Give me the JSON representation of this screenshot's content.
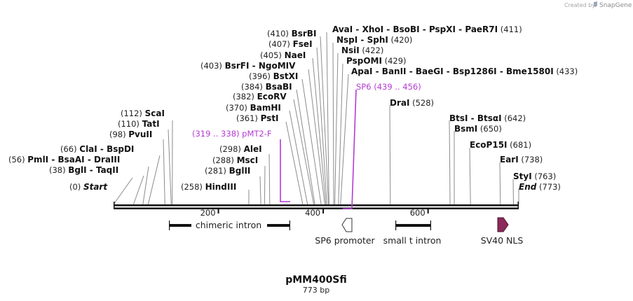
{
  "credit": {
    "prefix": "Created by",
    "brand": "SnapGene"
  },
  "map": {
    "name": "pMM400Sfi",
    "length_label": "773 bp",
    "length": 773
  },
  "ticks": [
    "200",
    "400",
    "600"
  ],
  "sites": [
    {
      "label_pos": "(0)",
      "names": [
        "Start"
      ],
      "italic": true
    },
    {
      "label_pos": "(38)",
      "names": [
        "BglI",
        "TaqII"
      ]
    },
    {
      "label_pos": "(56)",
      "names": [
        "PmlI",
        "BsaAI",
        "DraIII"
      ]
    },
    {
      "label_pos": "(66)",
      "names": [
        "ClaI",
        "BspDI"
      ]
    },
    {
      "label_pos": "(98)",
      "names": [
        "PvuII"
      ]
    },
    {
      "label_pos": "(110)",
      "names": [
        "TatI"
      ]
    },
    {
      "label_pos": "(112)",
      "names": [
        "ScaI"
      ]
    },
    {
      "label_pos": "(258)",
      "names": [
        "HindIII"
      ]
    },
    {
      "label_pos": "(281)",
      "names": [
        "BglII"
      ]
    },
    {
      "label_pos": "(288)",
      "names": [
        "MscI"
      ]
    },
    {
      "label_pos": "(298)",
      "names": [
        "AleI"
      ]
    },
    {
      "label_pos": "(361)",
      "names": [
        "PstI"
      ]
    },
    {
      "label_pos": "(370)",
      "names": [
        "BamHI"
      ]
    },
    {
      "label_pos": "(382)",
      "names": [
        "EcoRV"
      ]
    },
    {
      "label_pos": "(384)",
      "names": [
        "BsaBI"
      ]
    },
    {
      "label_pos": "(396)",
      "names": [
        "BstXI"
      ]
    },
    {
      "label_pos": "(403)",
      "names": [
        "BsrFI",
        "NgoMIV"
      ]
    },
    {
      "label_pos": "(405)",
      "names": [
        "NaeI"
      ]
    },
    {
      "label_pos": "(407)",
      "names": [
        "FseI"
      ]
    },
    {
      "label_pos": "(410)",
      "names": [
        "BsrBI"
      ]
    },
    {
      "label_pos": "(411)",
      "names": [
        "AvaI",
        "XhoI",
        "BsoBI",
        "PspXI",
        "PaeR7I"
      ]
    },
    {
      "label_pos": "(420)",
      "names": [
        "NspI",
        "SphI"
      ]
    },
    {
      "label_pos": "(422)",
      "names": [
        "NsiI"
      ]
    },
    {
      "label_pos": "(429)",
      "names": [
        "PspOMI"
      ]
    },
    {
      "label_pos": "(433)",
      "names": [
        "ApaI",
        "BanII",
        "BaeGI",
        "Bsp1286I",
        "Bme1580I"
      ]
    },
    {
      "label_pos": "(528)",
      "names": [
        "DraI"
      ]
    },
    {
      "label_pos": "(642)",
      "names": [
        "BtsI",
        "BtsαI"
      ]
    },
    {
      "label_pos": "(650)",
      "names": [
        "BsmI"
      ]
    },
    {
      "label_pos": "(681)",
      "names": [
        "EcoP15I"
      ]
    },
    {
      "label_pos": "(738)",
      "names": [
        "EarI"
      ]
    },
    {
      "label_pos": "(763)",
      "names": [
        "StyI"
      ]
    },
    {
      "label_pos": "(773)",
      "names": [
        "End"
      ],
      "italic": true
    }
  ],
  "primers": [
    {
      "name": "pMT2-F",
      "range": "(319 .. 338)"
    },
    {
      "name": "SP6",
      "range": "(439 .. 456)"
    }
  ],
  "features": [
    {
      "name": "chimeric intron",
      "type": "intron"
    },
    {
      "name": "SP6 promoter",
      "type": "promoter"
    },
    {
      "name": "small t intron",
      "type": "intron"
    },
    {
      "name": "SV40 NLS",
      "type": "nls"
    }
  ],
  "colors": {
    "primer": "#b43cd2",
    "nls": "#8b2a5b",
    "backbone": "#111111"
  }
}
